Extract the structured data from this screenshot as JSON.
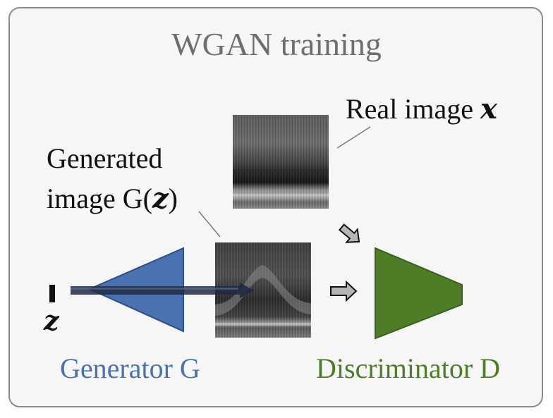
{
  "title": "WGAN training",
  "labels": {
    "real_image_prefix": "Real image",
    "real_image_var": "x",
    "generated_line1": "Generated",
    "generated_line2_prefix": "image G(",
    "generated_var": "z",
    "generated_suffix": ")",
    "noise_var": "z",
    "generator": "Generator G",
    "discriminator": "Discriminator D"
  },
  "colors": {
    "generator": "#4a72b0",
    "generator_stroke": "#2a4f8a",
    "discriminator": "#4f7d27",
    "discriminator_stroke": "#3a5e1c",
    "frame_border": "#8c8c8c",
    "title": "#6e6e6e",
    "flow_arrow": "#b5b5b5"
  }
}
